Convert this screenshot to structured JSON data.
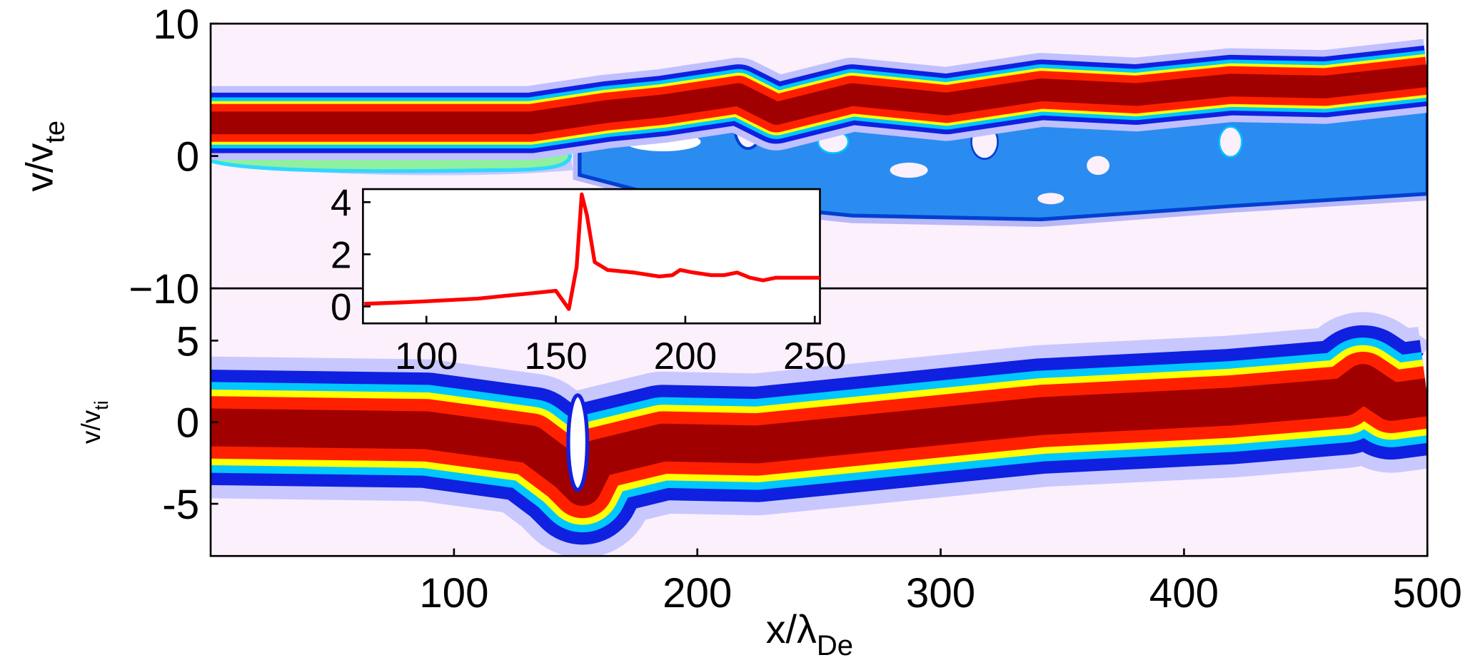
{
  "chart_data": [
    {
      "type": "heatmap",
      "ylabel": "v/v",
      "ylabel_sub": "te",
      "xlim": [
        0,
        500
      ],
      "ylim": [
        -10,
        10
      ],
      "yticks": [
        {
          "value": -10,
          "label": "−10"
        },
        0,
        10
      ]
    },
    {
      "type": "heatmap",
      "ylabel": "v/v",
      "ylabel_sub": "ti",
      "xlabel": "x/λ",
      "xlabel_sub": "De",
      "xlim": [
        0,
        500
      ],
      "ylim": [
        -8.2,
        8.2
      ],
      "xticks": [
        100,
        200,
        300,
        400,
        500
      ],
      "yticks": [
        -5,
        0,
        5
      ]
    },
    {
      "type": "line",
      "color": "#ff0000",
      "xlim": [
        75.5,
        252
      ],
      "ylim": [
        -0.65,
        4.5
      ],
      "xticks": [
        100,
        150,
        200,
        250
      ],
      "yticks": [
        0,
        2,
        4
      ],
      "x": [
        76,
        90,
        100,
        110,
        120,
        130,
        140,
        150,
        155,
        158,
        160,
        162,
        165,
        170,
        180,
        190,
        195,
        198,
        203,
        210,
        215,
        220,
        225,
        230,
        235,
        240,
        252
      ],
      "values": [
        0.1,
        0.15,
        0.2,
        0.25,
        0.3,
        0.4,
        0.5,
        0.6,
        -0.1,
        1.5,
        4.3,
        3.5,
        1.7,
        1.4,
        1.3,
        1.15,
        1.2,
        1.4,
        1.3,
        1.2,
        1.2,
        1.3,
        1.1,
        1.0,
        1.1,
        1.1,
        1.1
      ]
    }
  ]
}
